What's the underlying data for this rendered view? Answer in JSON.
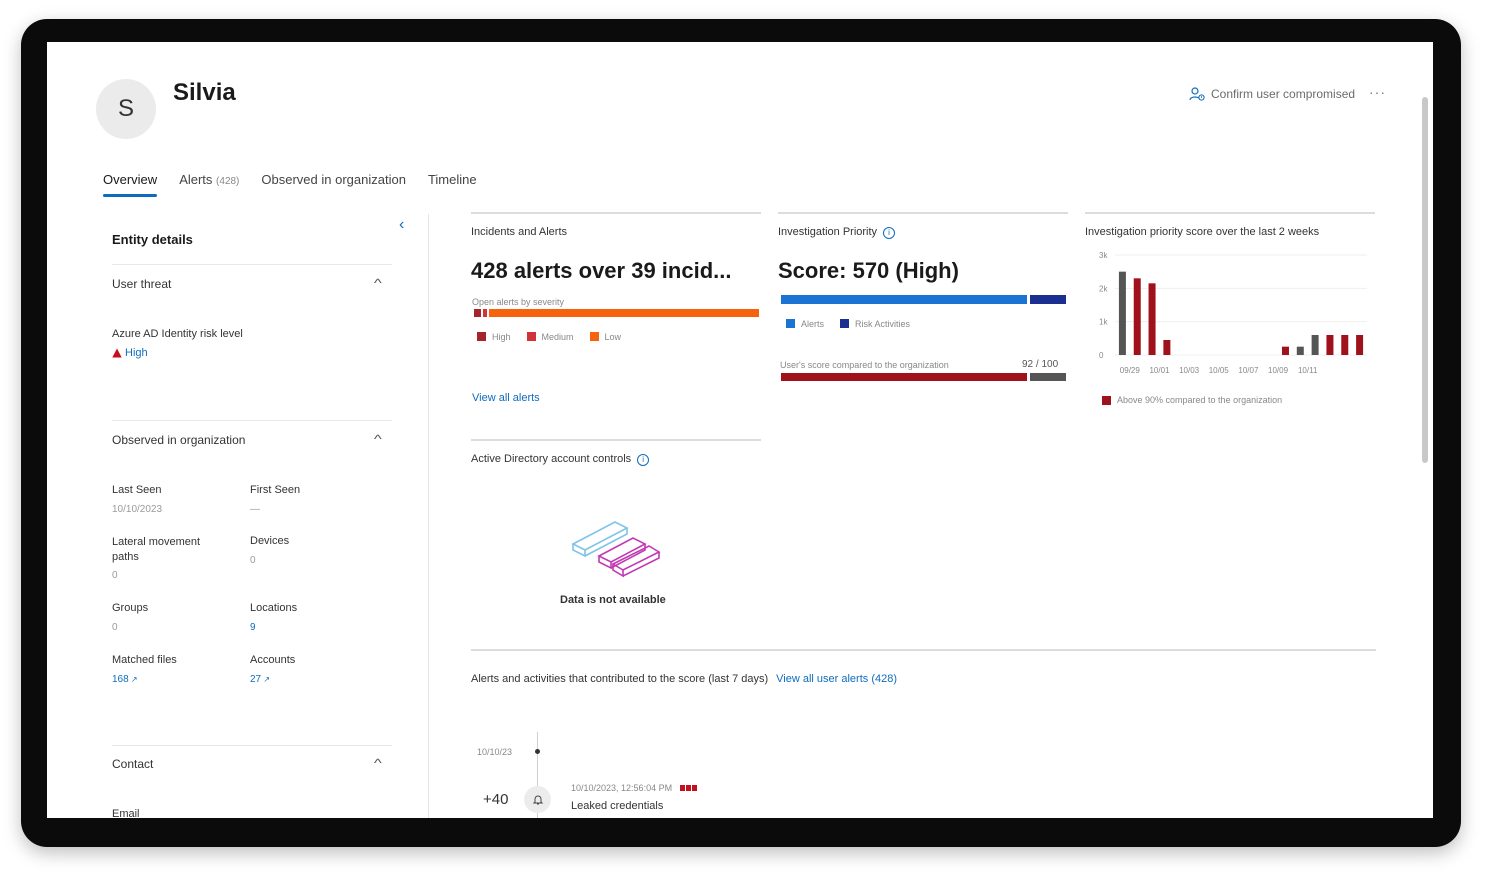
{
  "user": {
    "initial": "S",
    "name": "Silvia"
  },
  "actions": {
    "confirm_label": "Confirm user compromised",
    "more_label": "···"
  },
  "tabs": [
    {
      "label": "Overview"
    },
    {
      "label": "Alerts",
      "count": "(428)"
    },
    {
      "label": "Observed in organization"
    },
    {
      "label": "Timeline"
    }
  ],
  "sidebar": {
    "title": "Entity details",
    "collapse_icon": "‹",
    "user_threat": {
      "title": "User threat",
      "risk_label": "Azure AD Identity risk level",
      "risk_value": "High"
    },
    "observed": {
      "title": "Observed in organization",
      "last_seen_label": "Last Seen",
      "last_seen_value": "10/10/2023",
      "first_seen_label": "First Seen",
      "first_seen_value": "—",
      "lateral_label": "Lateral movement paths",
      "lateral_value": "0",
      "devices_label": "Devices",
      "devices_value": "0",
      "groups_label": "Groups",
      "groups_value": "0",
      "locations_label": "Locations",
      "locations_value": "9",
      "matched_label": "Matched files",
      "matched_value": "168",
      "accounts_label": "Accounts",
      "accounts_value": "27"
    },
    "contact": {
      "title": "Contact",
      "email_label": "Email"
    }
  },
  "incidents": {
    "title": "Incidents and Alerts",
    "headline": "428 alerts over 39 incid...",
    "bar_label": "Open alerts by severity",
    "legend": [
      "High",
      "Medium",
      "Low"
    ],
    "link": "View all alerts",
    "colors": {
      "high": "#a4262c",
      "medium": "#d13438",
      "low": "#f7630c"
    }
  },
  "priority": {
    "title": "Investigation Priority",
    "score": "Score: 570 (High)",
    "legend": [
      "Alerts",
      "Risk Activities"
    ],
    "compare_label": "User's score compared to the organization",
    "compare_value": "92 / 100",
    "compare_fraction": 0.92,
    "colors": {
      "alerts": "#1b74d3",
      "risk": "#1a2f8f",
      "compare": "#a0121b"
    }
  },
  "history": {
    "title": "Investigation priority score over the last 2 weeks",
    "legend": "Above 90% compared to the organization"
  },
  "chart_data": {
    "type": "bar",
    "title": "Investigation priority score over the last 2 weeks",
    "yticks": [
      "3k",
      "2k",
      "1k",
      "0"
    ],
    "xticks": [
      "09/29",
      "10/01",
      "10/03",
      "10/05",
      "10/07",
      "10/09",
      "10/11"
    ],
    "ylim": [
      0,
      3000
    ],
    "values": [
      2500,
      2300,
      2150,
      450,
      0,
      0,
      0,
      0,
      0,
      0,
      0,
      250,
      250,
      600,
      600,
      600,
      600
    ],
    "above90": [
      false,
      true,
      true,
      true,
      false,
      false,
      false,
      false,
      false,
      false,
      false,
      true,
      false,
      false,
      true,
      true,
      true
    ],
    "colors": {
      "normal": "#555555",
      "above": "#a0121b"
    }
  },
  "ad_controls": {
    "title": "Active Directory account controls",
    "empty_text": "Data is not available"
  },
  "contrib": {
    "title": "Alerts and activities that contributed to the score (last 7 days)",
    "link": "View all user alerts (428)",
    "date": "10/10/23",
    "points": "+40",
    "item_time": "10/10/2023, 12:56:04 PM",
    "item_title": "Leaked credentials"
  }
}
